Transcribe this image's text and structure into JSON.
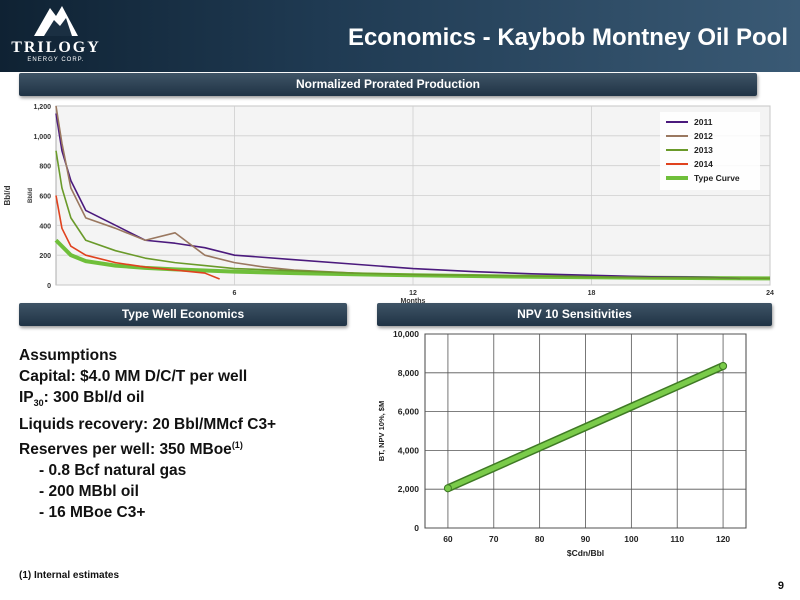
{
  "header": {
    "title": "Economics - Kaybob Montney Oil Pool",
    "logo_text": "TRILOGY",
    "logo_subtext": "ENERGY CORP."
  },
  "banners": {
    "production": "Normalized Prorated Production",
    "type_well": "Type Well Economics",
    "npv": "NPV 10 Sensitivities"
  },
  "assumptions": {
    "heading": "Assumptions",
    "capital": "Capital: $4.0 MM D/C/T per well",
    "ip_prefix": "IP",
    "ip_sub": "30",
    "ip_suffix": ": 300 Bbl/d oil",
    "liquids": "Liquids recovery: 20 Bbl/MMcf C3+",
    "reserves_text": "Reserves per well:  350 MBoe",
    "reserves_sup": "(1)",
    "items": [
      "- 0.8 Bcf natural gas",
      "- 200 MBbl oil",
      "- 16 MBoe C3+"
    ]
  },
  "footnote": "(1) Internal estimates",
  "page_number": "9",
  "colors": {
    "s2011": "#4b1a7d",
    "s2012": "#9a7860",
    "s2013": "#6a9a2a",
    "s2014": "#e0421e",
    "type_curve": "#6fbf3a",
    "npv_line": "#7acb4a"
  },
  "chart_data": [
    {
      "type": "line",
      "title": "Normalized Prorated Production",
      "xlabel": "Months",
      "ylabel": "Bbl/d",
      "ylabel_inner": "Bbl/d",
      "xlim": [
        0,
        24
      ],
      "ylim": [
        0,
        1200
      ],
      "x_ticks": [
        6,
        12,
        18,
        24
      ],
      "y_ticks": [
        0,
        200,
        400,
        600,
        800,
        1000,
        1200
      ],
      "y_tick_labels": [
        "0",
        "200",
        "400",
        "600",
        "800",
        "1,000",
        "1,200"
      ],
      "grid": true,
      "legend": "right",
      "series": [
        {
          "name": "2011",
          "x": [
            0,
            0.2,
            0.5,
            1,
            2,
            3,
            4,
            5,
            6,
            8,
            10,
            12,
            14,
            16,
            18,
            20,
            22,
            23
          ],
          "values": [
            1150,
            900,
            700,
            500,
            400,
            300,
            280,
            250,
            200,
            170,
            140,
            110,
            90,
            75,
            65,
            55,
            50,
            45
          ]
        },
        {
          "name": "2012",
          "x": [
            0,
            0.2,
            0.5,
            1,
            2,
            3,
            4,
            5,
            6,
            7,
            8,
            10
          ],
          "values": [
            1200,
            950,
            650,
            450,
            380,
            300,
            350,
            200,
            150,
            120,
            100,
            80
          ]
        },
        {
          "name": "2013",
          "x": [
            0,
            0.2,
            0.5,
            1,
            2,
            3,
            4,
            5,
            6,
            8,
            10,
            12,
            16,
            20,
            24
          ],
          "values": [
            900,
            650,
            450,
            300,
            230,
            180,
            150,
            130,
            110,
            95,
            80,
            70,
            60,
            50,
            45
          ]
        },
        {
          "name": "2014",
          "x": [
            0,
            0.2,
            0.5,
            1,
            2,
            3,
            4,
            5,
            5.5
          ],
          "values": [
            600,
            380,
            260,
            200,
            150,
            120,
            100,
            80,
            40
          ]
        },
        {
          "name": "Type Curve",
          "x": [
            0,
            0.5,
            1,
            2,
            3,
            4,
            6,
            8,
            10,
            12,
            14,
            16,
            18,
            20,
            22,
            24
          ],
          "values": [
            300,
            200,
            160,
            130,
            115,
            105,
            90,
            80,
            72,
            65,
            60,
            55,
            52,
            49,
            46,
            44
          ]
        }
      ]
    },
    {
      "type": "line",
      "title": "NPV 10 Sensitivities",
      "xlabel": "$Cdn/Bbl",
      "ylabel": "BT, NPV 10%, $M",
      "xlim": [
        55,
        125
      ],
      "ylim": [
        0,
        10000
      ],
      "x_ticks": [
        60,
        70,
        80,
        90,
        100,
        110,
        120
      ],
      "y_ticks": [
        0,
        2000,
        4000,
        6000,
        8000,
        10000
      ],
      "y_tick_labels": [
        "0",
        "2,000",
        "4,000",
        "6,000",
        "8,000",
        "10,000"
      ],
      "grid": true,
      "series": [
        {
          "x": [
            60,
            120
          ],
          "values": [
            2050,
            8350
          ]
        }
      ]
    }
  ]
}
